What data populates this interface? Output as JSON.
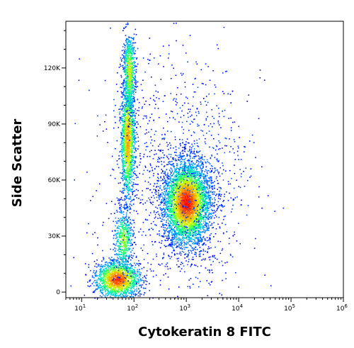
{
  "chart_data": {
    "type": "scatter",
    "subtype": "flow-cytometry-density-dot-plot",
    "title": "",
    "xlabel": "Cytokeratin 8 FITC",
    "ylabel": "Side Scatter",
    "x_scale": "log",
    "xlim": [
      5,
      1000000
    ],
    "ylim": [
      -3000,
      145000
    ],
    "x_ticks": [
      {
        "value": 10,
        "base": "10",
        "exp": "1"
      },
      {
        "value": 100,
        "base": "10",
        "exp": "2"
      },
      {
        "value": 1000,
        "base": "10",
        "exp": "3"
      },
      {
        "value": 10000,
        "base": "10",
        "exp": "4"
      },
      {
        "value": 100000,
        "base": "10",
        "exp": "5"
      },
      {
        "value": 1000000,
        "base": "10",
        "exp": "6"
      }
    ],
    "y_ticks": [
      {
        "value": 0,
        "label": "0"
      },
      {
        "value": 30000,
        "label": "30K"
      },
      {
        "value": 60000,
        "label": "60K"
      },
      {
        "value": 90000,
        "label": "90K"
      },
      {
        "value": 120000,
        "label": "120K"
      }
    ],
    "grid": false,
    "legend": "none",
    "color_scale": [
      "#0000ff",
      "#00b4ff",
      "#00ff80",
      "#c8ff00",
      "#ffa000",
      "#ff0000"
    ],
    "populations": [
      {
        "x_center": 48,
        "y_center": 7000,
        "x_spread_decades": 0.22,
        "y_spread": 5000,
        "count": 1600,
        "density": 0.95
      },
      {
        "x_center": 62,
        "y_center": 28000,
        "x_spread_decades": 0.09,
        "y_spread": 9000,
        "count": 500,
        "density": 0.55
      },
      {
        "x_center": 75,
        "y_center": 82000,
        "x_spread_decades": 0.07,
        "y_spread": 17000,
        "count": 1500,
        "density": 0.8
      },
      {
        "x_center": 80,
        "y_center": 118000,
        "x_spread_decades": 0.06,
        "y_spread": 11000,
        "count": 700,
        "density": 0.65
      },
      {
        "x_center": 1000,
        "y_center": 48000,
        "x_spread_decades": 0.22,
        "y_spread": 11000,
        "count": 4500,
        "density": 1.0
      },
      {
        "x_center": 1400,
        "y_center": 60000,
        "x_spread_decades": 0.55,
        "y_spread": 30000,
        "count": 900,
        "density": 0.1
      },
      {
        "x_center": 200,
        "y_center": 60000,
        "x_spread_decades": 0.6,
        "y_spread": 40000,
        "count": 350,
        "density": 0.05
      }
    ]
  }
}
